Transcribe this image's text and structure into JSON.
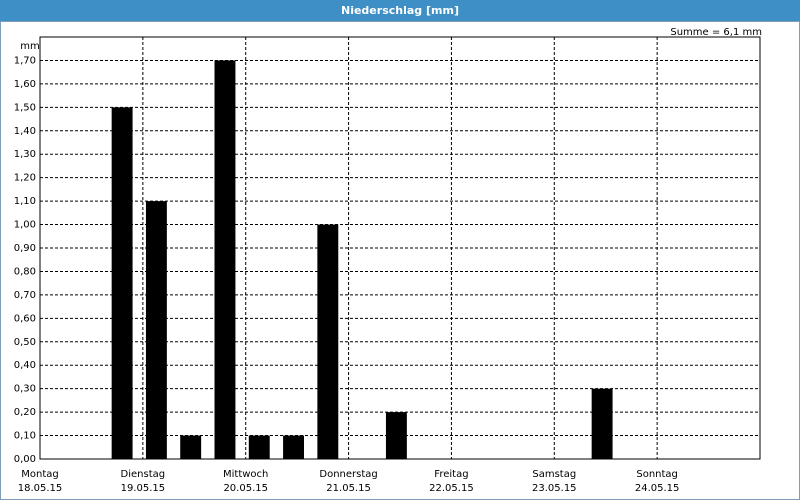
{
  "chart_data": {
    "type": "bar",
    "title": "Niederschlag [mm]",
    "annotation": "Summe = 6,1 mm",
    "y_label": "mm",
    "x": [
      16,
      24,
      32,
      40,
      48,
      56,
      64,
      80,
      128
    ],
    "values": [
      1.5,
      1.1,
      0.1,
      1.7,
      0.1,
      0.1,
      1.0,
      0.2,
      0.3
    ],
    "color": "#000000",
    "xlim": [
      0,
      168
    ],
    "xticks": [
      {
        "value": 0,
        "label": "Montag\n18.05.15"
      },
      {
        "value": 24,
        "label": "Dienstag\n19.05.15"
      },
      {
        "value": 48,
        "label": "Mittwoch\n20.05.15"
      },
      {
        "value": 72,
        "label": "Donnerstag\n21.05.15"
      },
      {
        "value": 96,
        "label": "Freitag\n22.05.15"
      },
      {
        "value": 120,
        "label": "Samstag\n23.05.15"
      },
      {
        "value": 144,
        "label": "Sonntag\n24.05.15"
      }
    ],
    "ylim": [
      0,
      1.8
    ],
    "yticks": [
      {
        "value": 0,
        "label": "0,00"
      },
      {
        "value": 0.1,
        "label": "0,10"
      },
      {
        "value": 0.2,
        "label": "0,20"
      },
      {
        "value": 0.3,
        "label": "0,30"
      },
      {
        "value": 0.4,
        "label": "0,40"
      },
      {
        "value": 0.5,
        "label": "0,50"
      },
      {
        "value": 0.6,
        "label": "0,60"
      },
      {
        "value": 0.7,
        "label": "0,70"
      },
      {
        "value": 0.8,
        "label": "0,80"
      },
      {
        "value": 0.9,
        "label": "0,90"
      },
      {
        "value": 1.0,
        "label": "1,00"
      },
      {
        "value": 1.1,
        "label": "1,10"
      },
      {
        "value": 1.2,
        "label": "1,20"
      },
      {
        "value": 1.3,
        "label": "1,30"
      },
      {
        "value": 1.4,
        "label": "1,40"
      },
      {
        "value": 1.5,
        "label": "1,50"
      },
      {
        "value": 1.6,
        "label": "1,60"
      },
      {
        "value": 1.7,
        "label": "1,70"
      }
    ],
    "grid": true
  }
}
